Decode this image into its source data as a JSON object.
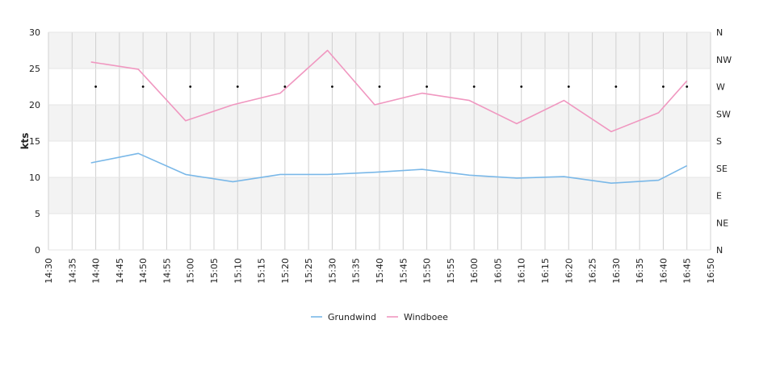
{
  "chart_data": {
    "type": "line",
    "title": "",
    "ylabel": "kts",
    "xlabel": "",
    "ylim": [
      0,
      30
    ],
    "yticks": [
      0,
      5,
      10,
      15,
      20,
      25,
      30
    ],
    "x_ticks": [
      "14:30",
      "14:35",
      "14:40",
      "14:45",
      "14:50",
      "14:55",
      "15:00",
      "15:05",
      "15:10",
      "15:15",
      "15:20",
      "15:25",
      "15:30",
      "15:35",
      "15:40",
      "15:45",
      "15:50",
      "15:55",
      "16:00",
      "16:05",
      "16:10",
      "16:15",
      "16:20",
      "16:25",
      "16:30",
      "16:35",
      "16:40",
      "16:45",
      "16:50"
    ],
    "xlim": [
      "14:30",
      "16:50"
    ],
    "y2_ticks": [
      "N",
      "NE",
      "E",
      "SE",
      "S",
      "SW",
      "W",
      "NW",
      "N"
    ],
    "grid": true,
    "legend_position": "bottom-center",
    "series": [
      {
        "name": "Grundwind",
        "color": "#7ab8e8",
        "points": [
          {
            "x": "14:39",
            "y": 12.0
          },
          {
            "x": "14:49",
            "y": 13.3
          },
          {
            "x": "14:59",
            "y": 10.4
          },
          {
            "x": "15:09",
            "y": 9.4
          },
          {
            "x": "15:19",
            "y": 10.4
          },
          {
            "x": "15:29",
            "y": 10.4
          },
          {
            "x": "15:39",
            "y": 10.7
          },
          {
            "x": "15:49",
            "y": 11.1
          },
          {
            "x": "15:59",
            "y": 10.3
          },
          {
            "x": "16:09",
            "y": 9.9
          },
          {
            "x": "16:19",
            "y": 10.1
          },
          {
            "x": "16:29",
            "y": 9.2
          },
          {
            "x": "16:39",
            "y": 9.6
          },
          {
            "x": "16:45",
            "y": 11.6
          }
        ]
      },
      {
        "name": "Windboee",
        "color": "#f097c0",
        "points": [
          {
            "x": "14:39",
            "y": 25.9
          },
          {
            "x": "14:49",
            "y": 24.9
          },
          {
            "x": "14:59",
            "y": 17.8
          },
          {
            "x": "15:09",
            "y": 20.0
          },
          {
            "x": "15:19",
            "y": 21.6
          },
          {
            "x": "15:29",
            "y": 27.5
          },
          {
            "x": "15:39",
            "y": 20.0
          },
          {
            "x": "15:49",
            "y": 21.6
          },
          {
            "x": "15:59",
            "y": 20.6
          },
          {
            "x": "16:09",
            "y": 17.4
          },
          {
            "x": "16:19",
            "y": 20.6
          },
          {
            "x": "16:29",
            "y": 16.3
          },
          {
            "x": "16:39",
            "y": 18.9
          },
          {
            "x": "16:45",
            "y": 23.3
          }
        ]
      }
    ],
    "direction_markers": {
      "color": "#000000",
      "points": [
        {
          "x": "14:40",
          "dir": "W"
        },
        {
          "x": "14:50",
          "dir": "W"
        },
        {
          "x": "15:00",
          "dir": "W"
        },
        {
          "x": "15:10",
          "dir": "W"
        },
        {
          "x": "15:20",
          "dir": "W"
        },
        {
          "x": "15:30",
          "dir": "W"
        },
        {
          "x": "15:40",
          "dir": "W"
        },
        {
          "x": "15:50",
          "dir": "W"
        },
        {
          "x": "16:00",
          "dir": "W"
        },
        {
          "x": "16:10",
          "dir": "W"
        },
        {
          "x": "16:20",
          "dir": "W"
        },
        {
          "x": "16:30",
          "dir": "W"
        },
        {
          "x": "16:40",
          "dir": "W"
        },
        {
          "x": "16:45",
          "dir": "W"
        }
      ]
    }
  }
}
